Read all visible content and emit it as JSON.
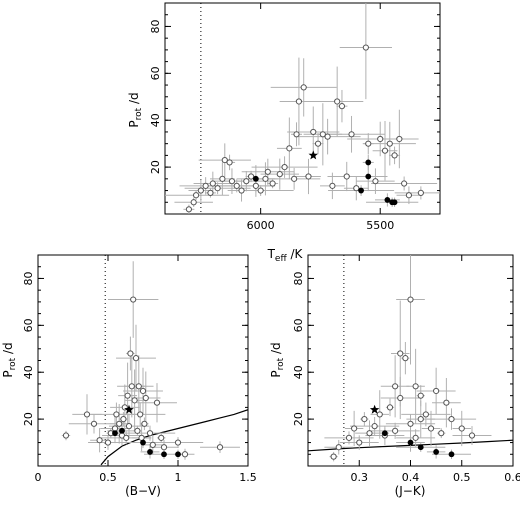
{
  "chart_data": [
    {
      "type": "scatter",
      "title": "",
      "xlabel": "T",
      "xlabel_sub": "eff",
      "xlabel_unit": " /K",
      "ylabel": "P",
      "ylabel_sub": "rot",
      "ylabel_unit": " /d",
      "x_reversed": true,
      "xlim": [
        6400,
        5250
      ],
      "ylim": [
        0,
        90
      ],
      "xticks": [
        6000,
        5500
      ],
      "yticks": [
        20,
        40,
        60,
        80
      ],
      "reference_line_x": 6250,
      "open_points": [
        {
          "x": 6300,
          "y": 2
        },
        {
          "x": 6280,
          "y": 5
        },
        {
          "x": 6270,
          "y": 8
        },
        {
          "x": 6250,
          "y": 10
        },
        {
          "x": 6230,
          "y": 12
        },
        {
          "x": 6210,
          "y": 9
        },
        {
          "x": 6200,
          "y": 13
        },
        {
          "x": 6180,
          "y": 11
        },
        {
          "x": 6160,
          "y": 15
        },
        {
          "x": 6150,
          "y": 23
        },
        {
          "x": 6130,
          "y": 22
        },
        {
          "x": 6120,
          "y": 14
        },
        {
          "x": 6100,
          "y": 12
        },
        {
          "x": 6080,
          "y": 10
        },
        {
          "x": 6060,
          "y": 14
        },
        {
          "x": 6040,
          "y": 16
        },
        {
          "x": 6020,
          "y": 12
        },
        {
          "x": 6000,
          "y": 10
        },
        {
          "x": 5980,
          "y": 15
        },
        {
          "x": 5970,
          "y": 18
        },
        {
          "x": 5950,
          "y": 13
        },
        {
          "x": 5920,
          "y": 17
        },
        {
          "x": 5900,
          "y": 20
        },
        {
          "x": 5880,
          "y": 28
        },
        {
          "x": 5860,
          "y": 15
        },
        {
          "x": 5850,
          "y": 34
        },
        {
          "x": 5840,
          "y": 48
        },
        {
          "x": 5820,
          "y": 54
        },
        {
          "x": 5800,
          "y": 16
        },
        {
          "x": 5780,
          "y": 35
        },
        {
          "x": 5760,
          "y": 30
        },
        {
          "x": 5740,
          "y": 34
        },
        {
          "x": 5720,
          "y": 33
        },
        {
          "x": 5700,
          "y": 12
        },
        {
          "x": 5680,
          "y": 48
        },
        {
          "x": 5660,
          "y": 46
        },
        {
          "x": 5640,
          "y": 16
        },
        {
          "x": 5620,
          "y": 34
        },
        {
          "x": 5600,
          "y": 11
        },
        {
          "x": 5560,
          "y": 71
        },
        {
          "x": 5550,
          "y": 30
        },
        {
          "x": 5520,
          "y": 14
        },
        {
          "x": 5500,
          "y": 32
        },
        {
          "x": 5480,
          "y": 27
        },
        {
          "x": 5460,
          "y": 30
        },
        {
          "x": 5440,
          "y": 25
        },
        {
          "x": 5420,
          "y": 32
        },
        {
          "x": 5400,
          "y": 13
        },
        {
          "x": 5380,
          "y": 8
        },
        {
          "x": 5330,
          "y": 9
        }
      ],
      "filled_points": [
        {
          "x": 5550,
          "y": 22
        },
        {
          "x": 5550,
          "y": 16
        },
        {
          "x": 5580,
          "y": 10
        },
        {
          "x": 5470,
          "y": 6
        },
        {
          "x": 5450,
          "y": 5
        },
        {
          "x": 5440,
          "y": 5
        },
        {
          "x": 6020,
          "y": 15
        }
      ],
      "star": {
        "x": 5780,
        "y": 25
      }
    },
    {
      "type": "scatter",
      "title": "",
      "xlabel": "(B−V)",
      "ylabel": "P",
      "ylabel_sub": "rot",
      "ylabel_unit": " /d",
      "xlim": [
        0,
        1.5
      ],
      "ylim": [
        0,
        90
      ],
      "xticks": [
        0,
        0.5,
        1,
        1.5
      ],
      "xtick_labels": [
        "0",
        "0.5",
        "1",
        "1.5"
      ],
      "yticks": [
        20,
        40,
        60,
        80
      ],
      "reference_line_x": 0.48,
      "curve": {
        "x": [
          0.45,
          0.5,
          0.6,
          0.7,
          0.8,
          0.9,
          1.0,
          1.1,
          1.2,
          1.3,
          1.4,
          1.5
        ],
        "y": [
          0.5,
          4,
          8.5,
          11,
          13,
          14.5,
          16,
          17.5,
          19,
          20.5,
          22,
          24
        ]
      },
      "open_points": [
        {
          "x": 0.2,
          "y": 13
        },
        {
          "x": 0.35,
          "y": 22
        },
        {
          "x": 0.4,
          "y": 18
        },
        {
          "x": 0.44,
          "y": 11
        },
        {
          "x": 0.5,
          "y": 10
        },
        {
          "x": 0.52,
          "y": 14
        },
        {
          "x": 0.55,
          "y": 16
        },
        {
          "x": 0.56,
          "y": 22
        },
        {
          "x": 0.58,
          "y": 18
        },
        {
          "x": 0.6,
          "y": 13
        },
        {
          "x": 0.61,
          "y": 20
        },
        {
          "x": 0.62,
          "y": 25
        },
        {
          "x": 0.63,
          "y": 12
        },
        {
          "x": 0.64,
          "y": 30
        },
        {
          "x": 0.65,
          "y": 17
        },
        {
          "x": 0.66,
          "y": 48
        },
        {
          "x": 0.67,
          "y": 34
        },
        {
          "x": 0.68,
          "y": 71
        },
        {
          "x": 0.69,
          "y": 28
        },
        {
          "x": 0.7,
          "y": 46
        },
        {
          "x": 0.71,
          "y": 15
        },
        {
          "x": 0.72,
          "y": 34
        },
        {
          "x": 0.73,
          "y": 22
        },
        {
          "x": 0.74,
          "y": 12
        },
        {
          "x": 0.75,
          "y": 32
        },
        {
          "x": 0.76,
          "y": 18
        },
        {
          "x": 0.77,
          "y": 29
        },
        {
          "x": 0.8,
          "y": 14
        },
        {
          "x": 0.82,
          "y": 9
        },
        {
          "x": 0.85,
          "y": 27
        },
        {
          "x": 0.88,
          "y": 12
        },
        {
          "x": 0.9,
          "y": 8
        },
        {
          "x": 1.0,
          "y": 10
        },
        {
          "x": 1.05,
          "y": 5
        },
        {
          "x": 1.3,
          "y": 8
        }
      ],
      "filled_points": [
        {
          "x": 0.55,
          "y": 14
        },
        {
          "x": 0.6,
          "y": 15
        },
        {
          "x": 0.75,
          "y": 10
        },
        {
          "x": 0.8,
          "y": 6
        },
        {
          "x": 0.9,
          "y": 5
        },
        {
          "x": 1.0,
          "y": 5
        }
      ],
      "star": {
        "x": 0.65,
        "y": 24
      }
    },
    {
      "type": "scatter",
      "title": "",
      "xlabel": "(J−K)",
      "ylabel": "P",
      "ylabel_sub": "rot",
      "ylabel_unit": " /d",
      "xlim": [
        0.2,
        0.6
      ],
      "ylim": [
        0,
        90
      ],
      "xticks": [
        0.3,
        0.4,
        0.5,
        0.6
      ],
      "xtick_labels": [
        "0.3",
        "0.4",
        "0.5",
        "0.6"
      ],
      "yticks": [
        20,
        40,
        60,
        80
      ],
      "reference_line_x": 0.27,
      "curve": {
        "x": [
          0.2,
          0.25,
          0.3,
          0.35,
          0.4,
          0.45,
          0.5,
          0.55,
          0.6
        ],
        "y": [
          6.5,
          7.2,
          7.8,
          8.3,
          8.8,
          9.3,
          9.8,
          10.4,
          11
        ]
      },
      "open_points": [
        {
          "x": 0.25,
          "y": 4
        },
        {
          "x": 0.26,
          "y": 8
        },
        {
          "x": 0.28,
          "y": 12
        },
        {
          "x": 0.29,
          "y": 16
        },
        {
          "x": 0.3,
          "y": 10
        },
        {
          "x": 0.31,
          "y": 20
        },
        {
          "x": 0.32,
          "y": 14
        },
        {
          "x": 0.33,
          "y": 17
        },
        {
          "x": 0.34,
          "y": 22
        },
        {
          "x": 0.35,
          "y": 13
        },
        {
          "x": 0.36,
          "y": 25
        },
        {
          "x": 0.37,
          "y": 34
        },
        {
          "x": 0.37,
          "y": 15
        },
        {
          "x": 0.38,
          "y": 48
        },
        {
          "x": 0.38,
          "y": 29
        },
        {
          "x": 0.39,
          "y": 46
        },
        {
          "x": 0.4,
          "y": 71
        },
        {
          "x": 0.4,
          "y": 18
        },
        {
          "x": 0.41,
          "y": 34
        },
        {
          "x": 0.41,
          "y": 12
        },
        {
          "x": 0.42,
          "y": 30
        },
        {
          "x": 0.42,
          "y": 20
        },
        {
          "x": 0.43,
          "y": 22
        },
        {
          "x": 0.44,
          "y": 16
        },
        {
          "x": 0.45,
          "y": 32
        },
        {
          "x": 0.46,
          "y": 14
        },
        {
          "x": 0.47,
          "y": 27
        },
        {
          "x": 0.48,
          "y": 20
        },
        {
          "x": 0.5,
          "y": 16
        },
        {
          "x": 0.52,
          "y": 13
        }
      ],
      "filled_points": [
        {
          "x": 0.35,
          "y": 14
        },
        {
          "x": 0.4,
          "y": 10
        },
        {
          "x": 0.42,
          "y": 8
        },
        {
          "x": 0.45,
          "y": 6
        },
        {
          "x": 0.48,
          "y": 5
        }
      ],
      "star": {
        "x": 0.33,
        "y": 24
      }
    }
  ]
}
